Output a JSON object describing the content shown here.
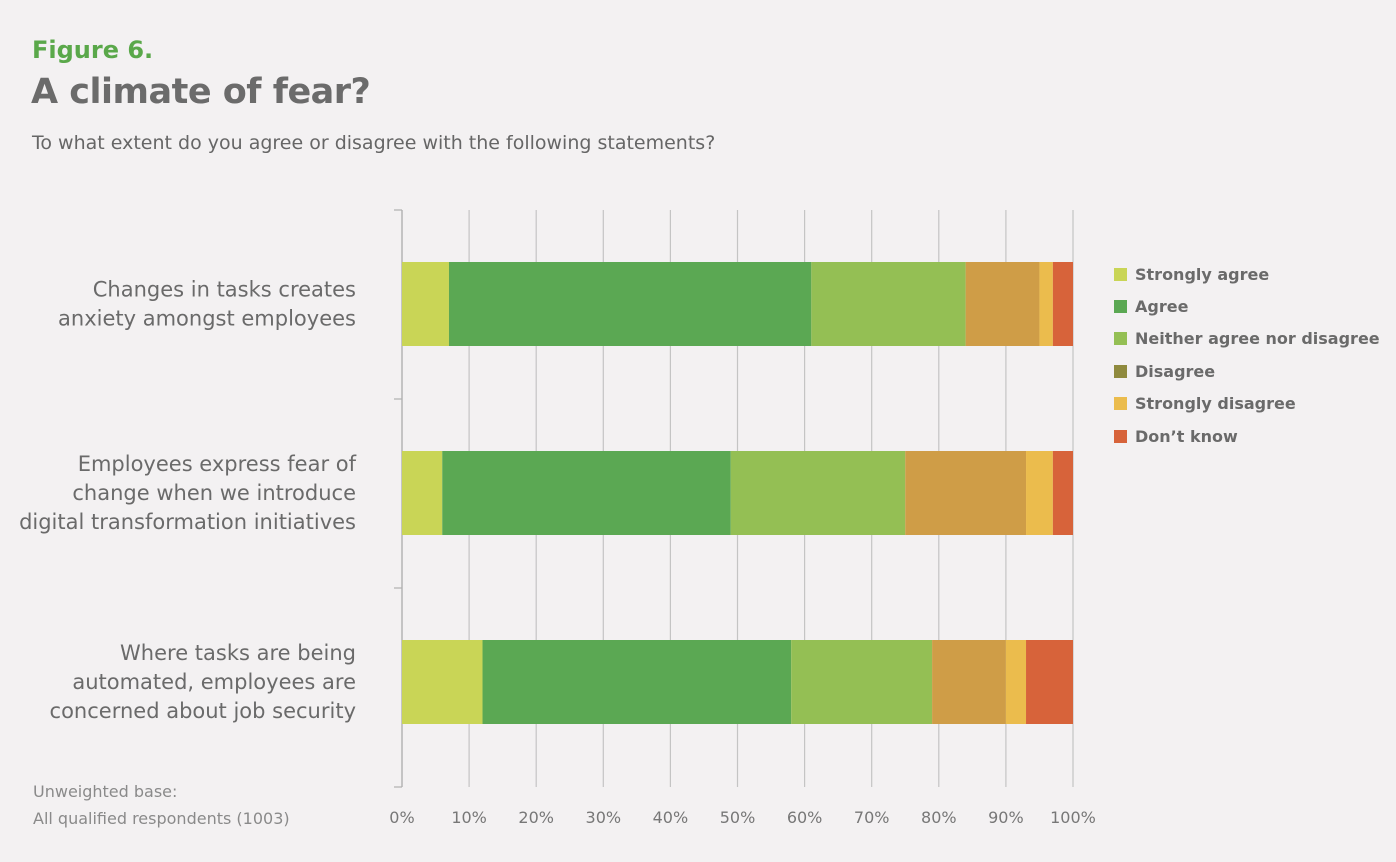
{
  "figure": {
    "label": "Figure 6.",
    "title": "A climate of fear?",
    "subtitle": "To what extent do you agree or disagree with the following statements?"
  },
  "footnote": {
    "line1": "Unweighted base:",
    "line2": "All qualified respondents (1003)"
  },
  "chart_data": {
    "type": "bar",
    "orientation": "horizontal",
    "stacked": true,
    "categories": [
      [
        "Changes in tasks creates",
        "anxiety amongst employees"
      ],
      [
        "Employees express fear of",
        "change when we introduce",
        "digital transformation initiatives"
      ],
      [
        "Where tasks are being",
        "automated, employees are",
        "concerned about job security"
      ]
    ],
    "series": [
      {
        "name": "Strongly agree",
        "color": "#c9d556",
        "values": [
          7,
          6,
          12
        ]
      },
      {
        "name": "Agree",
        "color": "#5ba853",
        "values": [
          54,
          43,
          46
        ]
      },
      {
        "name": "Neither agree nor disagree",
        "color": "#94bf54",
        "values": [
          23,
          26,
          21
        ]
      },
      {
        "name": "Disagree",
        "color": "#cf9d47",
        "values": [
          11,
          18,
          11
        ]
      },
      {
        "name": "Strongly disagree",
        "color": "#ebbc4d",
        "values": [
          2,
          4,
          3
        ]
      },
      {
        "name": "Don’t know",
        "color": "#d7633a",
        "values": [
          3,
          3,
          7
        ]
      }
    ],
    "legend_colors": [
      "#c9d556",
      "#5ba853",
      "#94bf54",
      "#8f8a3e",
      "#ebbc4d",
      "#d7633a"
    ],
    "xlim": [
      0,
      100
    ],
    "xticks": [
      "0%",
      "10%",
      "20%",
      "30%",
      "40%",
      "50%",
      "60%",
      "70%",
      "80%",
      "90%",
      "100%"
    ],
    "grid": true,
    "legend_position": "right"
  }
}
